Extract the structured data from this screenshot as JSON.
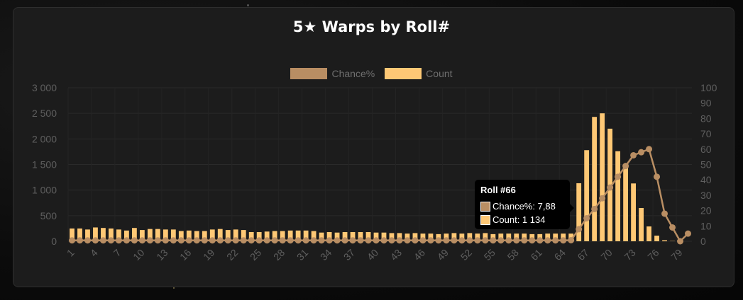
{
  "chart_data": {
    "type": "bar",
    "title": "5★ Warps by Roll#",
    "x": [
      1,
      2,
      3,
      4,
      5,
      6,
      7,
      8,
      9,
      10,
      11,
      12,
      13,
      14,
      15,
      16,
      17,
      18,
      19,
      20,
      21,
      22,
      23,
      24,
      25,
      26,
      27,
      28,
      29,
      30,
      31,
      32,
      33,
      34,
      35,
      36,
      37,
      38,
      39,
      40,
      41,
      42,
      43,
      44,
      45,
      46,
      47,
      48,
      49,
      50,
      51,
      52,
      53,
      54,
      55,
      56,
      57,
      58,
      59,
      60,
      61,
      62,
      63,
      64,
      65,
      66,
      67,
      68,
      69,
      70,
      71,
      72,
      73,
      74,
      75,
      76,
      77,
      78,
      79,
      80
    ],
    "x_tick_labels": [
      "1",
      "4",
      "7",
      "10",
      "13",
      "16",
      "19",
      "22",
      "25",
      "28",
      "31",
      "34",
      "37",
      "40",
      "43",
      "46",
      "49",
      "52",
      "55",
      "58",
      "61",
      "64",
      "67",
      "70",
      "73",
      "76",
      "79"
    ],
    "series": [
      {
        "name": "Chance%",
        "type": "line",
        "axis": "right",
        "color": "#b98e63",
        "values": [
          0.6,
          0.6,
          0.6,
          0.6,
          0.6,
          0.6,
          0.6,
          0.6,
          0.6,
          0.6,
          0.6,
          0.6,
          0.6,
          0.6,
          0.6,
          0.6,
          0.6,
          0.6,
          0.6,
          0.6,
          0.6,
          0.6,
          0.6,
          0.6,
          0.6,
          0.6,
          0.6,
          0.6,
          0.6,
          0.6,
          0.6,
          0.6,
          0.6,
          0.6,
          0.6,
          0.6,
          0.6,
          0.6,
          0.6,
          0.6,
          0.6,
          0.6,
          0.6,
          0.6,
          0.6,
          0.6,
          0.6,
          0.6,
          0.6,
          0.6,
          0.6,
          0.6,
          0.6,
          0.6,
          0.6,
          0.6,
          0.6,
          0.6,
          0.6,
          0.6,
          0.6,
          0.6,
          0.6,
          0.6,
          0.7,
          7.88,
          15,
          21,
          28,
          35,
          42,
          49,
          56,
          58,
          60,
          42,
          18,
          9,
          -1,
          5
        ]
      },
      {
        "name": "Count",
        "type": "bar",
        "axis": "left",
        "color": "#fec875",
        "values": [
          250,
          250,
          230,
          270,
          260,
          250,
          230,
          210,
          260,
          220,
          240,
          240,
          230,
          230,
          200,
          210,
          200,
          200,
          230,
          240,
          220,
          230,
          220,
          180,
          180,
          190,
          200,
          200,
          210,
          210,
          210,
          200,
          170,
          180,
          170,
          180,
          180,
          180,
          180,
          170,
          170,
          160,
          160,
          150,
          160,
          150,
          150,
          140,
          150,
          160,
          150,
          160,
          150,
          160,
          140,
          150,
          150,
          150,
          150,
          140,
          140,
          150,
          150,
          150,
          150,
          1134,
          1780,
          2430,
          2500,
          2200,
          1760,
          1450,
          1130,
          650,
          290,
          110,
          20,
          5,
          0,
          0
        ]
      }
    ],
    "y_left_ticks": [
      "3 000",
      "2 500",
      "2 000",
      "1 500",
      "1 000",
      "500",
      "0"
    ],
    "y_left_range": [
      0,
      3000
    ],
    "y_right_ticks": [
      "100",
      "90",
      "80",
      "70",
      "60",
      "50",
      "40",
      "30",
      "20",
      "10",
      "0"
    ],
    "y_right_range": [
      0,
      100
    ],
    "legend_placement": "top-center",
    "grid": true,
    "tooltip": {
      "title": "Roll #66",
      "lines": [
        "Chance%: 7,88",
        "Count: 1 134"
      ]
    }
  }
}
